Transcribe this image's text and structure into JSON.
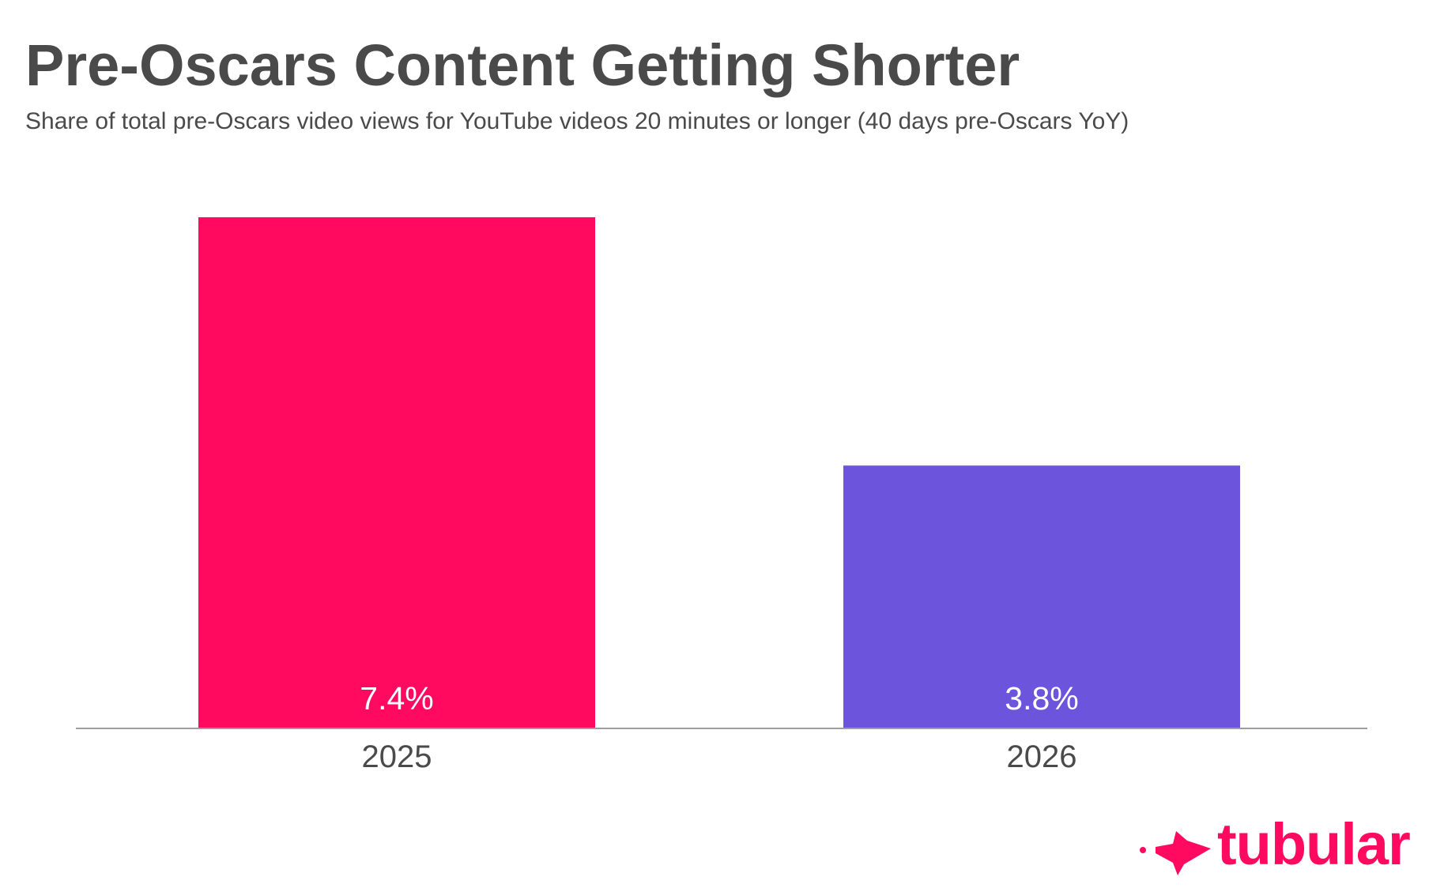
{
  "title": "Pre-Oscars Content Getting Shorter",
  "subtitle": "Share of total pre-Oscars video views for YouTube videos 20 minutes or longer (40 days pre-Oscars YoY)",
  "chart_data": {
    "type": "bar",
    "categories": [
      "2025",
      "2026"
    ],
    "values": [
      7.4,
      3.8
    ],
    "value_labels": [
      "7.4%",
      "3.8%"
    ],
    "bar_colors": [
      "#ff0a5e",
      "#6d54dc"
    ],
    "ylim": [
      0,
      7.4
    ],
    "grid": false,
    "legend": "none",
    "axis_line_color": "#9e9e9e",
    "label_color": "#ffffff",
    "tick_color": "#4a4a4a"
  },
  "brand": {
    "name": "tubular",
    "icon": "tubular-fish-logo-icon",
    "color": "#ff0a5e"
  }
}
